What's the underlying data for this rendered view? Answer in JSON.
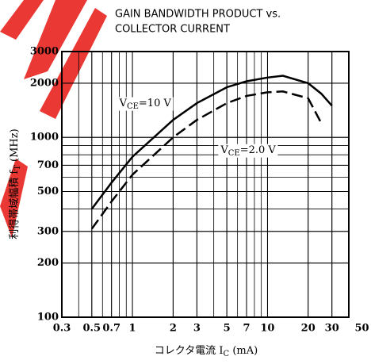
{
  "chart_data": {
    "type": "line",
    "title": [
      "GAIN BANDWIDTH PRODUCT vs.",
      "COLLECTOR CURRENT"
    ],
    "x_label": [
      "コレクタ電流  I",
      "C",
      " (mA)"
    ],
    "y_label": [
      "利得帯域幅積  f",
      "T",
      " (MHz)"
    ],
    "x": [
      0.5,
      0.7,
      1,
      2,
      3,
      5,
      7,
      10,
      13,
      20,
      25,
      30
    ],
    "series": [
      {
        "color": "#000000",
        "dash": false,
        "values": [
          400,
          560,
          780,
          1250,
          1550,
          1900,
          2050,
          2150,
          2200,
          2000,
          1750,
          1500
        ]
      },
      {
        "color": "#000000",
        "dash": true,
        "values": [
          310,
          440,
          620,
          1000,
          1250,
          1550,
          1700,
          1780,
          1800,
          1650,
          1200,
          null
        ]
      }
    ],
    "annotations": [
      {
        "text": [
          "V",
          "CE",
          "=10 V"
        ],
        "x": 0.8,
        "y": 1550
      },
      {
        "text": [
          "V",
          "CE",
          "=2.0 V"
        ],
        "x": 4.5,
        "y": 850
      }
    ],
    "xlim": [
      0.3,
      40
    ],
    "ylim": [
      100,
      3000
    ],
    "xticks": [
      0.3,
      0.5,
      0.7,
      1,
      2,
      3,
      5,
      7,
      10,
      20,
      30,
      50
    ],
    "yticks": [
      100,
      200,
      300,
      500,
      700,
      1000,
      2000,
      3000
    ],
    "xlog": true,
    "ylog": true,
    "grid": true
  }
}
